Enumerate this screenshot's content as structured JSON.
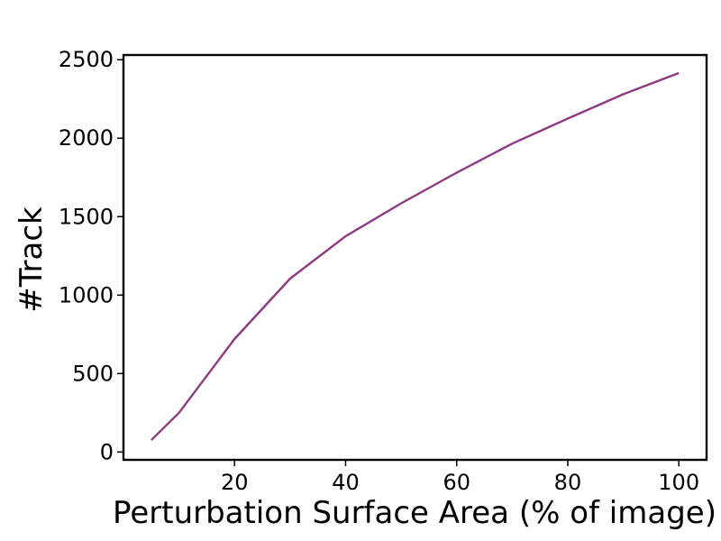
{
  "chart_data": {
    "type": "line",
    "title": "",
    "xlabel": "Perturbation Surface Area (% of image)",
    "ylabel": "#Track",
    "xlim": [
      0,
      105
    ],
    "ylim": [
      -50,
      2530
    ],
    "x_ticks": [
      20,
      40,
      60,
      80,
      100
    ],
    "y_ticks": [
      0,
      500,
      1000,
      1500,
      2000,
      2500
    ],
    "grid": false,
    "legend": "none",
    "series": [
      {
        "color": "#8e3a80",
        "x": [
          5,
          10,
          20,
          30,
          40,
          50,
          60,
          70,
          80,
          90,
          100
        ],
        "y": [
          75,
          250,
          720,
          1105,
          1375,
          1585,
          1780,
          1965,
          2125,
          2280,
          2415
        ]
      }
    ]
  }
}
